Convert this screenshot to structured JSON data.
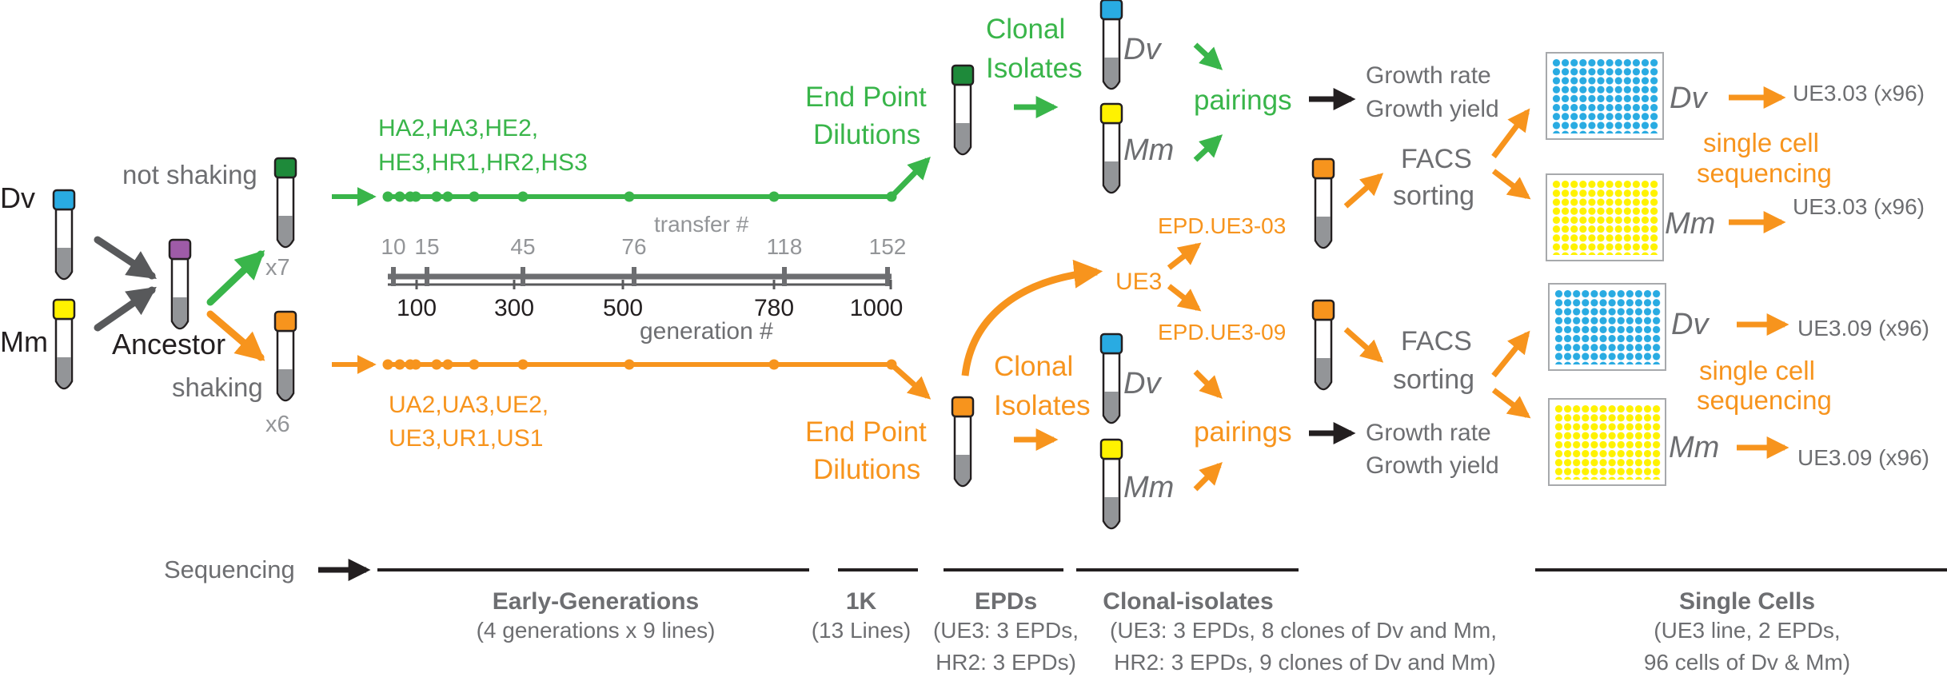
{
  "colors": {
    "green": "#39b54a",
    "orange": "#f7941d",
    "gray": "#6d6e71",
    "dark_gray": "#58595b",
    "light_gray": "#939598",
    "black": "#231f20",
    "cap_blue": "#29abe2",
    "cap_yellow": "#fff200",
    "cap_purple": "#9e5ba7",
    "cap_dark_green": "#1e8a3a",
    "cap_orange": "#f7941d",
    "well_blue": "#29abe2",
    "well_yellow": "#fff200"
  },
  "start": {
    "dv_label": "Dv",
    "mm_label": "Mm",
    "ancestor_label": "Ancestor",
    "not_shaking_label": "not shaking",
    "shaking_label": "shaking",
    "green_count": "x7",
    "orange_count": "x6"
  },
  "lines": {
    "green_names_1": "HA2,HA3,HE2,",
    "green_names_2": "HE3,HR1,HR2,HS3",
    "orange_names_1": "UA2,UA3,UE2,",
    "orange_names_2": "UE3,UR1,US1"
  },
  "scale": {
    "transfer_label": "transfer #",
    "generation_label": "generation #",
    "transfer_ticks": [
      "10",
      "15",
      "45",
      "76",
      "118",
      "152"
    ],
    "generation_ticks": [
      "100",
      "300",
      "500",
      "780",
      "1000"
    ]
  },
  "epd": {
    "top_1": "End Point",
    "top_2": "Dilutions",
    "bottom_1": "End Point",
    "bottom_2": "Dilutions",
    "ue3": "UE3",
    "epd_03": "EPD.UE3-03",
    "epd_09": "EPD.UE3-09"
  },
  "clonal": {
    "top_1": "Clonal",
    "top_2": "Isolates",
    "bottom_1": "Clonal",
    "bottom_2": "Isolates",
    "dv": "Dv",
    "mm": "Mm",
    "pairings": "pairings"
  },
  "growth": {
    "rate": "Growth rate",
    "yield": "Growth yield"
  },
  "facs": {
    "line1": "FACS",
    "line2": "sorting"
  },
  "single_cell": {
    "line1": "single cell",
    "line2": "sequencing",
    "dv": "Dv",
    "mm": "Mm",
    "out_03_dv": "UE3.03 (x96)",
    "out_03_mm": "UE3.03 (x96)",
    "out_09_dv": "UE3.09 (x96)",
    "out_09_mm": "UE3.09 (x96)"
  },
  "timeline": {
    "label": "Sequencing",
    "sections": [
      {
        "title": "Early-Generations",
        "sub": [
          "(4 generations x 9 lines)"
        ]
      },
      {
        "title": "1K",
        "sub": [
          "(13 Lines)"
        ]
      },
      {
        "title": "EPDs",
        "sub": [
          "(UE3: 3 EPDs,",
          "HR2: 3 EPDs)"
        ]
      },
      {
        "title": "Clonal-isolates",
        "sub": [
          "(UE3: 3 EPDs, 8 clones of Dv and Mm,",
          "HR2: 3 EPDs, 9 clones of Dv and Mm)"
        ]
      },
      {
        "title": "Single Cells",
        "sub": [
          "(UE3 line, 2 EPDs,",
          "96 cells of Dv & Mm)"
        ]
      }
    ]
  }
}
